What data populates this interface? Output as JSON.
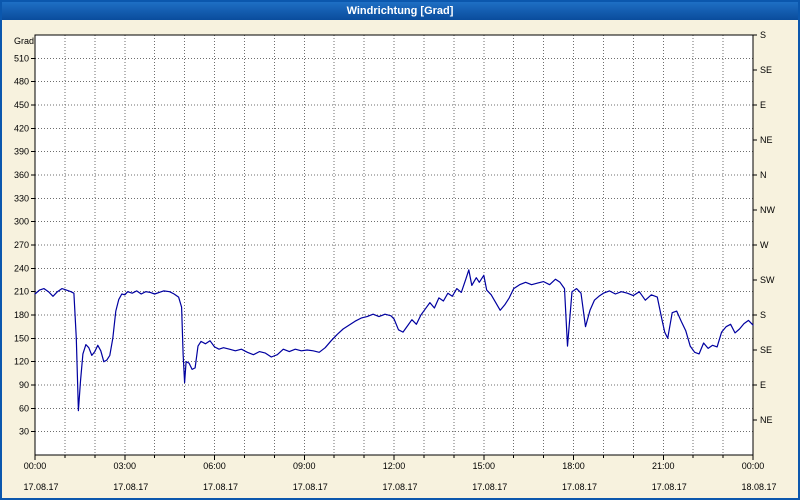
{
  "window": {
    "title": "Windrichtung [Grad]"
  },
  "chart_data": {
    "type": "line",
    "title": "Windrichtung [Grad]",
    "ylabel": "Grad",
    "ylim": [
      0,
      540
    ],
    "xlim_hours": [
      0,
      24
    ],
    "grid": {
      "horizontal_step_deg": 30,
      "vertical_step_hours": 1,
      "style": "dotted"
    },
    "legend": "none",
    "y_ticks_left": [
      30,
      60,
      90,
      120,
      150,
      180,
      210,
      240,
      270,
      300,
      330,
      360,
      390,
      420,
      450,
      480,
      510
    ],
    "y_ticks_right": [
      {
        "deg": 45,
        "label": "NE"
      },
      {
        "deg": 90,
        "label": "E"
      },
      {
        "deg": 135,
        "label": "SE"
      },
      {
        "deg": 180,
        "label": "S"
      },
      {
        "deg": 225,
        "label": "SW"
      },
      {
        "deg": 270,
        "label": "W"
      },
      {
        "deg": 315,
        "label": "NW"
      },
      {
        "deg": 360,
        "label": "N"
      },
      {
        "deg": 405,
        "label": "NE"
      },
      {
        "deg": 450,
        "label": "E"
      },
      {
        "deg": 495,
        "label": "SE"
      },
      {
        "deg": 540,
        "label": "S"
      }
    ],
    "x_ticks": [
      {
        "hour": 0,
        "time": "00:00",
        "date": "17.08.17"
      },
      {
        "hour": 3,
        "time": "03:00",
        "date": "17.08.17"
      },
      {
        "hour": 6,
        "time": "06:00",
        "date": "17.08.17"
      },
      {
        "hour": 9,
        "time": "09:00",
        "date": "17.08.17"
      },
      {
        "hour": 12,
        "time": "12:00",
        "date": "17.08.17"
      },
      {
        "hour": 15,
        "time": "15:00",
        "date": "17.08.17"
      },
      {
        "hour": 18,
        "time": "18:00",
        "date": "17.08.17"
      },
      {
        "hour": 21,
        "time": "21:00",
        "date": "17.08.17"
      },
      {
        "hour": 24,
        "time": "00:00",
        "date": "18.08.17"
      }
    ],
    "series": [
      {
        "name": "Windrichtung",
        "color": "#0000a0",
        "points": [
          [
            0.0,
            207
          ],
          [
            0.15,
            212
          ],
          [
            0.3,
            214
          ],
          [
            0.45,
            210
          ],
          [
            0.6,
            204
          ],
          [
            0.75,
            210
          ],
          [
            0.9,
            214
          ],
          [
            1.05,
            212
          ],
          [
            1.2,
            210
          ],
          [
            1.3,
            208
          ],
          [
            1.38,
            150
          ],
          [
            1.45,
            57
          ],
          [
            1.52,
            95
          ],
          [
            1.6,
            130
          ],
          [
            1.7,
            142
          ],
          [
            1.8,
            138
          ],
          [
            1.9,
            128
          ],
          [
            2.0,
            133
          ],
          [
            2.1,
            141
          ],
          [
            2.2,
            134
          ],
          [
            2.3,
            120
          ],
          [
            2.4,
            122
          ],
          [
            2.5,
            128
          ],
          [
            2.6,
            150
          ],
          [
            2.7,
            185
          ],
          [
            2.8,
            200
          ],
          [
            2.9,
            207
          ],
          [
            3.0,
            206
          ],
          [
            3.1,
            210
          ],
          [
            3.25,
            208
          ],
          [
            3.4,
            211
          ],
          [
            3.55,
            207
          ],
          [
            3.7,
            210
          ],
          [
            3.85,
            209
          ],
          [
            4.0,
            207
          ],
          [
            4.15,
            209
          ],
          [
            4.3,
            211
          ],
          [
            4.5,
            210
          ],
          [
            4.65,
            207
          ],
          [
            4.8,
            203
          ],
          [
            4.9,
            190
          ],
          [
            4.95,
            130
          ],
          [
            5.0,
            93
          ],
          [
            5.05,
            120
          ],
          [
            5.15,
            118
          ],
          [
            5.25,
            110
          ],
          [
            5.35,
            112
          ],
          [
            5.45,
            140
          ],
          [
            5.55,
            146
          ],
          [
            5.7,
            143
          ],
          [
            5.85,
            147
          ],
          [
            6.0,
            139
          ],
          [
            6.15,
            136
          ],
          [
            6.3,
            138
          ],
          [
            6.5,
            136
          ],
          [
            6.7,
            134
          ],
          [
            6.9,
            136
          ],
          [
            7.1,
            132
          ],
          [
            7.3,
            129
          ],
          [
            7.5,
            133
          ],
          [
            7.7,
            131
          ],
          [
            7.9,
            126
          ],
          [
            8.1,
            129
          ],
          [
            8.3,
            136
          ],
          [
            8.5,
            133
          ],
          [
            8.7,
            136
          ],
          [
            8.9,
            134
          ],
          [
            9.1,
            135
          ],
          [
            9.3,
            134
          ],
          [
            9.5,
            132
          ],
          [
            9.7,
            138
          ],
          [
            9.9,
            147
          ],
          [
            10.1,
            155
          ],
          [
            10.3,
            162
          ],
          [
            10.5,
            167
          ],
          [
            10.7,
            172
          ],
          [
            10.9,
            176
          ],
          [
            11.1,
            178
          ],
          [
            11.3,
            181
          ],
          [
            11.5,
            178
          ],
          [
            11.7,
            181
          ],
          [
            11.9,
            179
          ],
          [
            12.0,
            175
          ],
          [
            12.15,
            161
          ],
          [
            12.3,
            158
          ],
          [
            12.45,
            166
          ],
          [
            12.6,
            174
          ],
          [
            12.75,
            168
          ],
          [
            12.9,
            180
          ],
          [
            13.05,
            188
          ],
          [
            13.2,
            196
          ],
          [
            13.35,
            189
          ],
          [
            13.5,
            202
          ],
          [
            13.65,
            198
          ],
          [
            13.8,
            208
          ],
          [
            13.95,
            204
          ],
          [
            14.1,
            214
          ],
          [
            14.25,
            209
          ],
          [
            14.4,
            226
          ],
          [
            14.5,
            238
          ],
          [
            14.6,
            218
          ],
          [
            14.75,
            228
          ],
          [
            14.85,
            222
          ],
          [
            15.0,
            231
          ],
          [
            15.1,
            212
          ],
          [
            15.25,
            206
          ],
          [
            15.4,
            196
          ],
          [
            15.55,
            186
          ],
          [
            15.7,
            193
          ],
          [
            15.85,
            202
          ],
          [
            16.0,
            214
          ],
          [
            16.2,
            219
          ],
          [
            16.4,
            222
          ],
          [
            16.6,
            219
          ],
          [
            16.8,
            221
          ],
          [
            17.0,
            223
          ],
          [
            17.2,
            219
          ],
          [
            17.4,
            226
          ],
          [
            17.55,
            222
          ],
          [
            17.7,
            214
          ],
          [
            17.8,
            140
          ],
          [
            17.95,
            210
          ],
          [
            18.1,
            214
          ],
          [
            18.25,
            208
          ],
          [
            18.4,
            165
          ],
          [
            18.55,
            186
          ],
          [
            18.7,
            199
          ],
          [
            18.85,
            204
          ],
          [
            19.0,
            208
          ],
          [
            19.2,
            211
          ],
          [
            19.4,
            207
          ],
          [
            19.6,
            210
          ],
          [
            19.8,
            208
          ],
          [
            20.0,
            205
          ],
          [
            20.2,
            210
          ],
          [
            20.4,
            199
          ],
          [
            20.6,
            206
          ],
          [
            20.8,
            203
          ],
          [
            20.95,
            175
          ],
          [
            21.05,
            158
          ],
          [
            21.15,
            150
          ],
          [
            21.3,
            183
          ],
          [
            21.45,
            185
          ],
          [
            21.6,
            172
          ],
          [
            21.75,
            160
          ],
          [
            21.9,
            140
          ],
          [
            22.05,
            132
          ],
          [
            22.2,
            130
          ],
          [
            22.35,
            144
          ],
          [
            22.5,
            137
          ],
          [
            22.65,
            141
          ],
          [
            22.8,
            139
          ],
          [
            22.95,
            158
          ],
          [
            23.1,
            165
          ],
          [
            23.25,
            168
          ],
          [
            23.4,
            157
          ],
          [
            23.55,
            162
          ],
          [
            23.7,
            169
          ],
          [
            23.85,
            173
          ],
          [
            24.0,
            167
          ]
        ]
      }
    ],
    "colors": {
      "background": "#f7f2de",
      "plot_bg": "#ffffff",
      "grid": "#6e6e6e",
      "axis": "#000000",
      "titlebar_top": "#1e6fc4",
      "titlebar_bottom": "#0a4c9c",
      "title_text": "#ffffff",
      "window_border": "#0b57ad",
      "line": "#0000a0"
    }
  }
}
